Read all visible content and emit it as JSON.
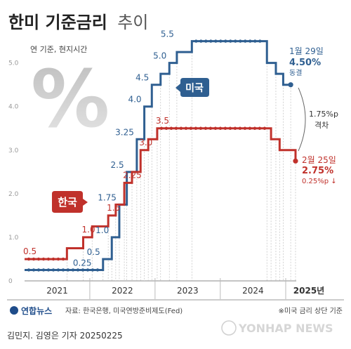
{
  "chart_data": {
    "type": "line",
    "title": "한미 기준금리",
    "title_suffix": "추이",
    "subtitle": "연 기준, 현지시간",
    "symbol": "%",
    "x_ticks": [
      "2021",
      "2022",
      "2023",
      "2024",
      "2025년"
    ],
    "y_ticks": [
      "0",
      "1.0",
      "2.0",
      "3.0",
      "4.0",
      "5.0"
    ],
    "ylim": [
      0,
      5.8
    ],
    "colors": {
      "us": "#2f5f91",
      "korea": "#c0312b",
      "note": "#444444",
      "grid": "#bfbfbf"
    },
    "series": [
      {
        "name": "미국",
        "key": "us",
        "points": [
          [
            "2021-01-01",
            0.25
          ],
          [
            "2022-03-16",
            0.5
          ],
          [
            "2022-05-04",
            1.0
          ],
          [
            "2022-06-15",
            1.75
          ],
          [
            "2022-07-27",
            2.5
          ],
          [
            "2022-09-21",
            3.25
          ],
          [
            "2022-11-02",
            4.0
          ],
          [
            "2022-12-14",
            4.5
          ],
          [
            "2023-02-01",
            4.75
          ],
          [
            "2023-03-22",
            5.0
          ],
          [
            "2023-05-03",
            5.25
          ],
          [
            "2023-07-26",
            5.5
          ],
          [
            "2024-09-18",
            5.0
          ],
          [
            "2024-11-07",
            4.75
          ],
          [
            "2024-12-18",
            4.5
          ],
          [
            "2025-01-29",
            4.5
          ]
        ],
        "labels": [
          {
            "date": "2022-01-27",
            "value": 0.25,
            "text": "0.25"
          },
          {
            "date": "2022-03-16",
            "value": 0.5,
            "text": "0.5"
          },
          {
            "date": "2022-05-04",
            "value": 1.0,
            "text": "1.0"
          },
          {
            "date": "2022-06-15",
            "value": 1.75,
            "text": "1.75"
          },
          {
            "date": "2022-07-27",
            "value": 2.5,
            "text": "2.5"
          },
          {
            "date": "2022-09-21",
            "value": 3.25,
            "text": "3.25"
          },
          {
            "date": "2022-11-02",
            "value": 4.0,
            "text": "4.0"
          },
          {
            "date": "2022-12-14",
            "value": 4.5,
            "text": "4.5"
          },
          {
            "date": "2023-03-22",
            "value": 5.0,
            "text": "5.0"
          },
          {
            "date": "2023-05-03",
            "value": 5.5,
            "text": "5.5"
          }
        ]
      },
      {
        "name": "한국",
        "key": "korea",
        "points": [
          [
            "2021-01-01",
            0.5
          ],
          [
            "2021-08-26",
            0.75
          ],
          [
            "2021-11-25",
            1.0
          ],
          [
            "2022-01-14",
            1.25
          ],
          [
            "2022-04-14",
            1.5
          ],
          [
            "2022-05-26",
            1.75
          ],
          [
            "2022-07-13",
            2.25
          ],
          [
            "2022-08-25",
            2.5
          ],
          [
            "2022-10-12",
            3.0
          ],
          [
            "2022-11-24",
            3.25
          ],
          [
            "2023-01-13",
            3.5
          ],
          [
            "2024-10-11",
            3.25
          ],
          [
            "2024-11-28",
            3.0
          ],
          [
            "2025-02-25",
            2.75
          ]
        ],
        "labels": [
          {
            "date": "2021-01-01",
            "value": 0.5,
            "text": "0.5"
          },
          {
            "date": "2021-11-25",
            "value": 1.0,
            "text": "1.0"
          },
          {
            "date": "2022-04-14",
            "value": 1.5,
            "text": "1.5"
          },
          {
            "date": "2022-07-13",
            "value": 2.25,
            "text": "2.25"
          },
          {
            "date": "2022-10-12",
            "value": 3.0,
            "text": "3.0"
          },
          {
            "date": "2023-01-13",
            "value": 3.5,
            "text": "3.5"
          }
        ]
      }
    ],
    "annotations": {
      "us_date": "1월 29일",
      "us_value": "4.50%",
      "us_note": "동결",
      "gap_value": "1.75%p",
      "gap_label": "격차",
      "kr_date": "2월 25일",
      "kr_value": "2.75%",
      "kr_note": "0.25%p ↓"
    }
  },
  "footer": {
    "logo_text": "연합뉴스",
    "source": "자료: 한국은행, 미국연방준비제도(Fed)",
    "note": "※미국 금리 상단 기준",
    "byline": "김민지. 김영은 기자  20250225",
    "watermark": "YONHAP NEWS"
  }
}
